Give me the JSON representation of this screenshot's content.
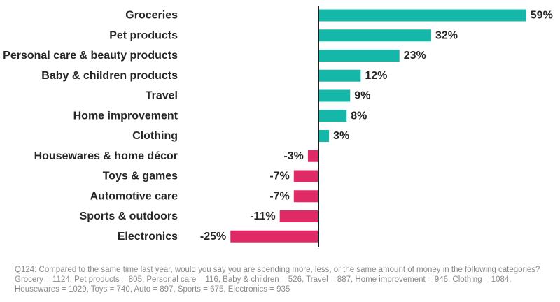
{
  "chart_data": {
    "type": "bar",
    "orientation": "horizontal",
    "categories": [
      "Groceries",
      "Pet products",
      "Personal care & beauty products",
      "Baby & children products",
      "Travel",
      "Home improvement",
      "Clothing",
      "Housewares & home décor",
      "Toys & games",
      "Automotive care",
      "Sports & outdoors",
      "Electronics"
    ],
    "values": [
      59,
      32,
      23,
      12,
      9,
      8,
      3,
      -3,
      -7,
      -7,
      -11,
      -25
    ],
    "value_labels": [
      "59%",
      "32%",
      "23%",
      "12%",
      "9%",
      "8%",
      "3%",
      "-3%",
      "-7%",
      "-7%",
      "-11%",
      "-25%"
    ],
    "unit": "%",
    "xlim": [
      -25,
      59
    ],
    "colors": {
      "positive": "#15b8a8",
      "negative": "#e02a65",
      "axis": "#1a1a1a"
    },
    "grid": false,
    "legend": "none"
  },
  "footnote": {
    "lines": [
      "Q124: Compared to the same time last year, would you say you are spending more, less, or the same amount of money in the following categories?",
      "Grocery = 1124, Pet products = 805, Personal care = 116, Baby & children = 526, Travel = 887, Home improvement = 946, Clothing = 1084,",
      "Housewares = 1029, Toys = 740, Auto = 897, Sports = 675, Electronics = 935"
    ]
  }
}
